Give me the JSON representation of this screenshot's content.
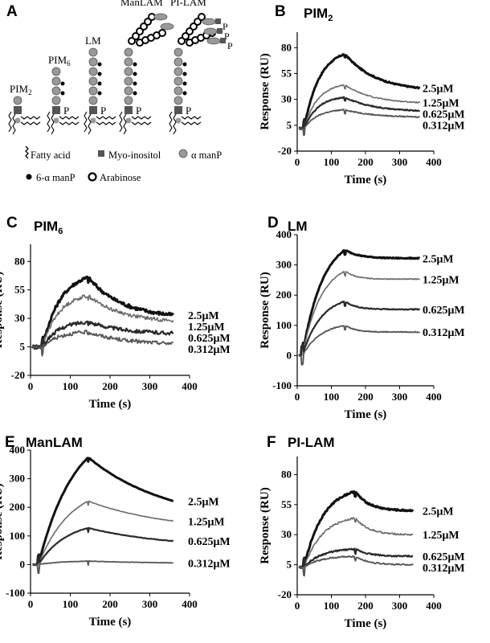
{
  "figure": {
    "panel_a": {
      "letter": "A",
      "molecules": [
        "PIM2",
        "PIM6",
        "LM",
        "ManLAM",
        "PI-LAM"
      ],
      "phosphate": "P",
      "legend": {
        "fatty_acid": "Fatty acid",
        "myo_inositol": "Myo-inositol",
        "alpha_manp": "α manP",
        "six_alpha_manp": "6-α manP",
        "arabinose": "Arabinose"
      }
    }
  },
  "chart_data": [
    {
      "panel": "B",
      "title": "PIM2",
      "type": "line",
      "xlabel": "Time (s)",
      "ylabel": "Response (RU)",
      "xlim": [
        0,
        400
      ],
      "ylim": [
        -20,
        95
      ],
      "xticks": [
        0,
        100,
        200,
        300,
        400
      ],
      "yticks": [
        -20,
        5,
        30,
        55,
        80
      ],
      "injection_start": 20,
      "injection_end": 140,
      "t_end": 360,
      "series": [
        {
          "name": "2.5μM",
          "start": 2,
          "peak": 74,
          "end": 41,
          "rise_tau": 45,
          "decay_tau": 90,
          "noise": 0.6
        },
        {
          "name": "1.25μM",
          "start": 2,
          "peak": 44,
          "end": 27,
          "rise_tau": 40,
          "decay_tau": 80,
          "noise": 0.5
        },
        {
          "name": "0.625μM",
          "start": 2,
          "peak": 32,
          "end": 19,
          "rise_tau": 40,
          "decay_tau": 85,
          "noise": 0.5
        },
        {
          "name": "0.312μM",
          "start": 2,
          "peak": 20,
          "end": 13,
          "rise_tau": 40,
          "decay_tau": 85,
          "noise": 0.5
        }
      ]
    },
    {
      "panel": "C",
      "title": "PIM6",
      "type": "line",
      "xlabel": "Time (s)",
      "ylabel": "Response (RU)",
      "xlim": [
        0,
        400
      ],
      "ylim": [
        -20,
        95
      ],
      "xticks": [
        0,
        100,
        200,
        300,
        400
      ],
      "yticks": [
        -20,
        5,
        30,
        55,
        80
      ],
      "injection_start": 30,
      "injection_end": 145,
      "t_end": 360,
      "series": [
        {
          "name": "2.5μM",
          "start": 5,
          "peak": 66,
          "end": 33,
          "rise_tau": 45,
          "decay_tau": 85,
          "noise": 1.6
        },
        {
          "name": "1.25μM",
          "start": 5,
          "peak": 50,
          "end": 28,
          "rise_tau": 42,
          "decay_tau": 85,
          "noise": 1.6
        },
        {
          "name": "0.625μM",
          "start": 5,
          "peak": 27,
          "end": 17,
          "rise_tau": 40,
          "decay_tau": 90,
          "noise": 1.6
        },
        {
          "name": "0.312μM",
          "start": 5,
          "peak": 18,
          "end": 8,
          "rise_tau": 40,
          "decay_tau": 90,
          "noise": 1.6
        }
      ]
    },
    {
      "panel": "D",
      "title": "LM",
      "type": "line",
      "xlabel": "Time (s)",
      "ylabel": "Response (RU)",
      "xlim": [
        0,
        400
      ],
      "ylim": [
        -100,
        400
      ],
      "xticks": [
        0,
        100,
        200,
        300,
        400
      ],
      "yticks": [
        -100,
        0,
        100,
        200,
        300,
        400
      ],
      "injection_start": 15,
      "injection_end": 140,
      "t_end": 360,
      "series": [
        {
          "name": "2.5μM",
          "start": 0,
          "peak": 350,
          "end": 322,
          "rise_tau": 60,
          "decay_tau": 40,
          "noise": 1.5
        },
        {
          "name": "1.25μM",
          "start": 0,
          "peak": 280,
          "end": 253,
          "rise_tau": 55,
          "decay_tau": 30,
          "noise": 1.5
        },
        {
          "name": "0.625μM",
          "start": 0,
          "peak": 180,
          "end": 153,
          "rise_tau": 55,
          "decay_tau": 30,
          "noise": 1.5
        },
        {
          "name": "0.312μM",
          "start": 0,
          "peak": 100,
          "end": 78,
          "rise_tau": 55,
          "decay_tau": 30,
          "noise": 1.5
        }
      ]
    },
    {
      "panel": "E",
      "title": "ManLAM",
      "type": "line",
      "xlabel": "Time (s)",
      "ylabel": "Response (RU)",
      "xlim": [
        0,
        400
      ],
      "ylim": [
        -100,
        400
      ],
      "xticks": [
        0,
        100,
        200,
        300,
        400
      ],
      "yticks": [
        -100,
        0,
        100,
        200,
        300,
        400
      ],
      "injection_start": 20,
      "injection_end": 145,
      "t_end": 360,
      "series": [
        {
          "name": "2.5μM",
          "start": 0,
          "peak": 375,
          "end": 222,
          "rise_tau": 90,
          "decay_tau": 200,
          "noise": 0.8
        },
        {
          "name": "1.25μM",
          "start": 0,
          "peak": 222,
          "end": 152,
          "rise_tau": 80,
          "decay_tau": 200,
          "noise": 0.8
        },
        {
          "name": "0.625μM",
          "start": 0,
          "peak": 128,
          "end": 82,
          "rise_tau": 70,
          "decay_tau": 200,
          "noise": 0.8
        },
        {
          "name": "0.312μM",
          "start": 0,
          "peak": 12,
          "end": 6,
          "rise_tau": 60,
          "decay_tau": 200,
          "noise": 0.8
        }
      ]
    },
    {
      "panel": "F",
      "title": "PI-LAM",
      "type": "line",
      "xlabel": "Time (s)",
      "ylabel": "Response (RU)",
      "xlim": [
        0,
        400
      ],
      "ylim": [
        -20,
        95
      ],
      "xticks": [
        0,
        100,
        200,
        300,
        400
      ],
      "yticks": [
        -20,
        5,
        30,
        55,
        80
      ],
      "injection_start": 20,
      "injection_end": 170,
      "t_end": 340,
      "series": [
        {
          "name": "2.5μM",
          "start": 3,
          "peak": 66,
          "end": 50,
          "rise_tau": 55,
          "decay_tau": 40,
          "noise": 0.7
        },
        {
          "name": "1.25μM",
          "start": 3,
          "peak": 44,
          "end": 30,
          "rise_tau": 55,
          "decay_tau": 40,
          "noise": 0.7
        },
        {
          "name": "0.625μM",
          "start": 3,
          "peak": 18,
          "end": 12,
          "rise_tau": 50,
          "decay_tau": 40,
          "noise": 0.6
        },
        {
          "name": "0.312μM",
          "start": 3,
          "peak": 12,
          "end": 5,
          "rise_tau": 50,
          "decay_tau": 40,
          "noise": 0.6
        }
      ]
    }
  ]
}
